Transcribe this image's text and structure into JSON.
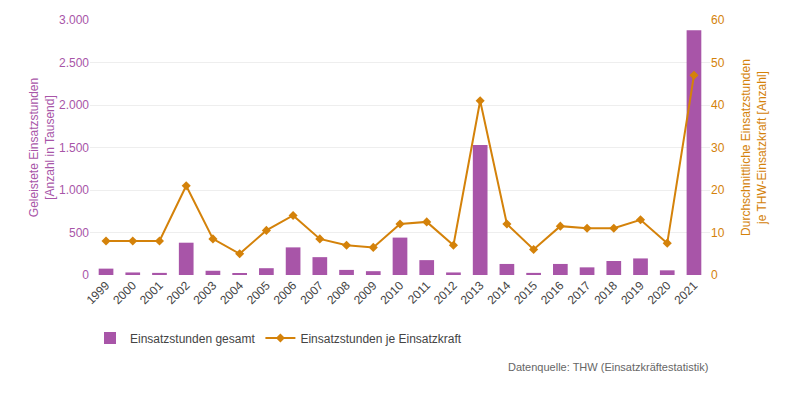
{
  "chart_data": {
    "type": "bar",
    "categories": [
      "1999",
      "2000",
      "2001",
      "2002",
      "2003",
      "2004",
      "2005",
      "2006",
      "2007",
      "2008",
      "2009",
      "2010",
      "2011",
      "2012",
      "2013",
      "2014",
      "2015",
      "2016",
      "2017",
      "2018",
      "2019",
      "2020",
      "2021"
    ],
    "series": [
      {
        "name": "Einsatzstunden gesamt",
        "type": "bar",
        "color": "#a855a8",
        "values": [
          75,
          30,
          25,
          380,
          50,
          20,
          80,
          325,
          210,
          60,
          45,
          440,
          175,
          30,
          1530,
          130,
          25,
          130,
          90,
          165,
          195,
          55,
          2880
        ]
      },
      {
        "name": "Einsatzstunden je Einsatzkraft",
        "type": "line",
        "axis": "y2",
        "color": "#d4820a",
        "marker": "diamond",
        "line_style": "solid",
        "values": [
          8,
          8,
          8,
          21,
          8.5,
          5,
          10.5,
          14,
          8.5,
          7,
          6.5,
          12,
          12.5,
          7,
          41,
          12,
          6,
          11.5,
          11,
          11,
          13,
          7.5,
          47
        ]
      }
    ],
    "ylabel": "Geleistete Einsatzstunden\n[Anzahl in Tausend]",
    "y2label": "Durchschnittliche Einsatzstunden\nje THW-Einsatzkraft [Anzahl]",
    "ylim": [
      0,
      3000
    ],
    "yticks": [
      0,
      500,
      {
        "value": 1000,
        "label": "1.000"
      },
      {
        "value": 1500,
        "label": "1.500"
      },
      {
        "value": 2000,
        "label": "2.000"
      },
      {
        "value": 2500,
        "label": "2.500"
      },
      {
        "value": 3000,
        "label": "3.000"
      }
    ],
    "y2lim": [
      0,
      60
    ],
    "y2ticks": [
      0,
      10,
      20,
      30,
      40,
      50,
      60
    ],
    "grid": true,
    "legend": "bottom",
    "annotations": [
      "Datenquelle: THW (Einsatzkräftestatistik)"
    ]
  }
}
